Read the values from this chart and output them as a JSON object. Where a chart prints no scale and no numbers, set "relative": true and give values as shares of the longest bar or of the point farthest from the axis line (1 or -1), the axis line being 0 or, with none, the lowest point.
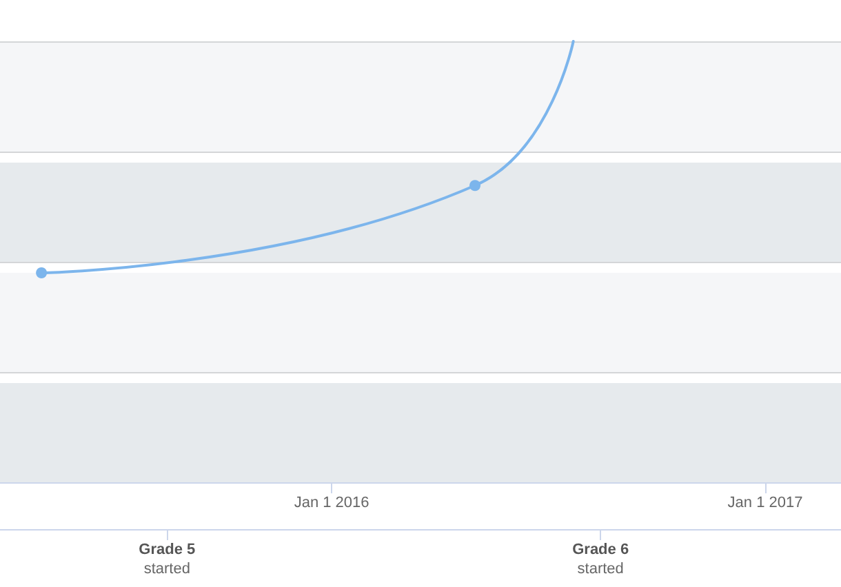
{
  "chart_data": {
    "type": "line",
    "relative": true,
    "x": [
      "2015-05-01",
      "2016-05-01",
      "2016-07-23"
    ],
    "series": [
      {
        "color": "#7cb5ec",
        "values": [
          0.475,
          0.673,
          1
        ]
      }
    ],
    "marker": "circle",
    "line_style": "solid",
    "grid": "y",
    "xlim": [
      "2015-03-27",
      "2017-03-06"
    ],
    "xticks": [
      {
        "value": "2016-01-01",
        "label": "Jan 1 2016"
      },
      {
        "value": "2017-01-01",
        "label": "Jan 1 2017"
      }
    ],
    "x2lim": [
      "2015-03-27",
      "2017-03-06"
    ],
    "x2ticks": [
      {
        "value": "2015-08-15",
        "label": "Grade 5\nstarted"
      },
      {
        "value": "2016-08-15",
        "label": "Grade 6\nstarted"
      }
    ],
    "bands": [
      {
        "axis": "y",
        "from": 0,
        "to": 0.225,
        "color": "#e6eaed"
      },
      {
        "axis": "y",
        "from": 0.25,
        "to": 0.475,
        "color": "#f5f6f8"
      },
      {
        "axis": "y",
        "from": 0.5,
        "to": 0.725,
        "color": "#e6eaed"
      },
      {
        "axis": "y",
        "from": 0.75,
        "to": 1,
        "color": "#f5f6f8"
      }
    ]
  }
}
